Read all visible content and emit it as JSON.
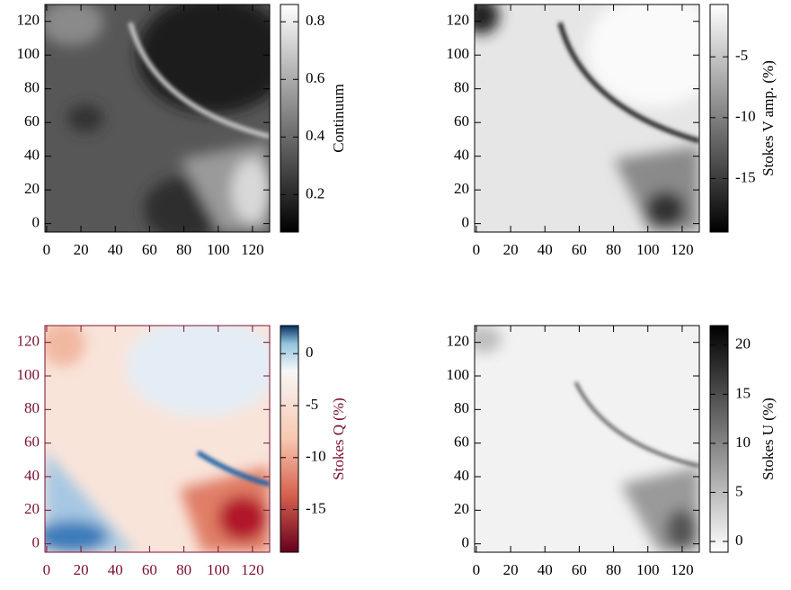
{
  "chart_data": [
    {
      "type": "heatmap",
      "xlim": [
        -1,
        130
      ],
      "ylim": [
        -5,
        130
      ],
      "xticks": [
        0,
        20,
        40,
        60,
        80,
        100,
        120
      ],
      "yticks": [
        0,
        20,
        40,
        60,
        80,
        100,
        120
      ],
      "colorbar": {
        "label": "Continuum",
        "lim": [
          0.07,
          0.86
        ],
        "ticks": [
          0.2,
          0.4,
          0.6,
          0.8
        ],
        "cmap": "gray"
      }
    },
    {
      "type": "heatmap",
      "xlim": [
        -1,
        130
      ],
      "ylim": [
        -5,
        130
      ],
      "xticks": [
        0,
        20,
        40,
        60,
        80,
        100,
        120
      ],
      "yticks": [
        0,
        20,
        40,
        60,
        80,
        100,
        120
      ],
      "colorbar": {
        "label": "Stokes V amp. (%)",
        "lim": [
          -19.4,
          -0.7
        ],
        "ticks": [
          -15,
          -10,
          -5
        ],
        "cmap": "gray"
      }
    },
    {
      "type": "heatmap",
      "xlim": [
        -1,
        130
      ],
      "ylim": [
        -5,
        130
      ],
      "xticks": [
        0,
        20,
        40,
        60,
        80,
        100,
        120
      ],
      "yticks": [
        0,
        20,
        40,
        60,
        80,
        100,
        120
      ],
      "axis_color": "#7a1030",
      "colorbar": {
        "label": "Stokes Q (%)",
        "lim": [
          -19.1,
          2.7
        ],
        "ticks": [
          -15,
          -10,
          -5,
          0
        ],
        "cmap": "RdBu"
      }
    },
    {
      "type": "heatmap",
      "xlim": [
        -1,
        130
      ],
      "ylim": [
        -5,
        130
      ],
      "xticks": [
        0,
        20,
        40,
        60,
        80,
        100,
        120
      ],
      "yticks": [
        0,
        20,
        40,
        60,
        80,
        100,
        120
      ],
      "colorbar": {
        "label": "Stokes U (%)",
        "lim": [
          -1.1,
          22
        ],
        "ticks": [
          0,
          5,
          10,
          15,
          20
        ],
        "cmap": "gray_r"
      }
    }
  ]
}
